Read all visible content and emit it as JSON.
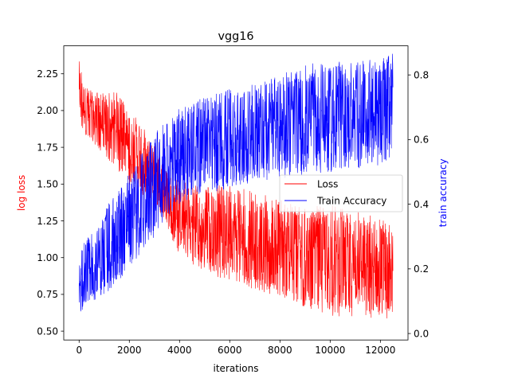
{
  "chart_data": {
    "type": "line",
    "title": "vgg16",
    "xlabel": "iterations",
    "ylabel_left": "log loss",
    "ylabel_right": "train accuracy",
    "xlim": [
      -612,
      13100
    ],
    "ylim_left": [
      0.44,
      2.44
    ],
    "ylim_right": [
      -0.02,
      0.89
    ],
    "x_ticks": [
      0,
      2000,
      4000,
      6000,
      8000,
      10000,
      12000
    ],
    "x_tick_labels": [
      "0",
      "2000",
      "4000",
      "6000",
      "8000",
      "10000",
      "12000"
    ],
    "y_left_ticks": [
      0.5,
      0.75,
      1.0,
      1.25,
      1.5,
      1.75,
      2.0,
      2.25
    ],
    "y_left_tick_labels": [
      "0.50",
      "0.75",
      "1.00",
      "1.25",
      "1.50",
      "1.75",
      "2.00",
      "2.25"
    ],
    "y_right_ticks": [
      0.0,
      0.2,
      0.4,
      0.6,
      0.8
    ],
    "y_right_tick_labels": [
      "0.0",
      "0.2",
      "0.4",
      "0.6",
      "0.8"
    ],
    "grid": false,
    "legend_position": "center-right",
    "series": [
      {
        "name": "Loss",
        "axis": "left",
        "color": "#ff0000",
        "x": [
          0,
          100,
          300,
          600,
          1000,
          1500,
          2000,
          2500,
          3000,
          3500,
          4000,
          5000,
          6000,
          7000,
          8000,
          9000,
          10000,
          11000,
          12000,
          12500
        ],
        "upper": [
          2.38,
          2.27,
          2.18,
          2.12,
          2.14,
          2.13,
          2.0,
          1.92,
          1.76,
          1.58,
          1.52,
          1.48,
          1.5,
          1.44,
          1.4,
          1.34,
          1.36,
          1.32,
          1.28,
          1.25
        ],
        "lower": [
          2.02,
          1.88,
          1.82,
          1.76,
          1.7,
          1.6,
          1.5,
          1.42,
          1.35,
          1.2,
          1.02,
          0.9,
          0.84,
          0.78,
          0.72,
          0.66,
          0.6,
          0.58,
          0.56,
          0.58
        ]
      },
      {
        "name": "Train Accuracy",
        "axis": "right",
        "color": "#0000ff",
        "x": [
          0,
          100,
          300,
          600,
          1000,
          1500,
          2000,
          2500,
          3000,
          3500,
          4000,
          5000,
          6000,
          7000,
          8000,
          9000,
          10000,
          11000,
          12000,
          12500
        ],
        "upper": [
          0.22,
          0.26,
          0.3,
          0.34,
          0.38,
          0.44,
          0.5,
          0.56,
          0.62,
          0.66,
          0.7,
          0.73,
          0.76,
          0.77,
          0.8,
          0.83,
          0.85,
          0.84,
          0.85,
          0.87
        ],
        "lower": [
          0.04,
          0.07,
          0.09,
          0.1,
          0.12,
          0.15,
          0.2,
          0.25,
          0.3,
          0.35,
          0.4,
          0.43,
          0.45,
          0.47,
          0.48,
          0.49,
          0.5,
          0.51,
          0.52,
          0.55
        ]
      }
    ]
  }
}
